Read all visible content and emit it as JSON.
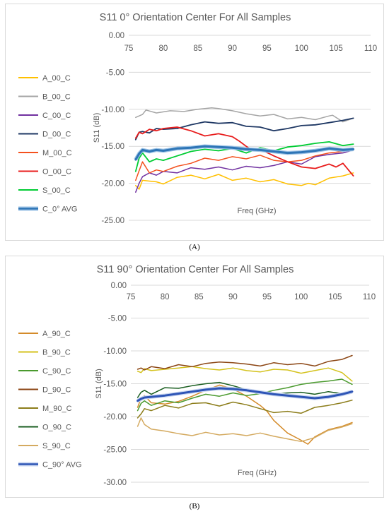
{
  "chart_data": [
    {
      "type": "line",
      "title": "S11 0° Orientation Center For All Samples",
      "xlabel": "Freq (GHz)",
      "ylabel": "S11 (dB)",
      "xlim": [
        75,
        110
      ],
      "ylim": [
        -25,
        0
      ],
      "x_ticks": [
        "75",
        "80",
        "85",
        "90",
        "95",
        "100",
        "105",
        "110"
      ],
      "y_ticks": [
        "0.00",
        "-5.00",
        "-10.00",
        "-15.00",
        "-20.00",
        "-25.00"
      ],
      "legend_position": "left",
      "series": [
        {
          "name": "A_00_C",
          "color": "#ffc000",
          "width": 1.5,
          "x": [
            76,
            76.5,
            77,
            78,
            79,
            80,
            82,
            84,
            86,
            88,
            90,
            92,
            94,
            96,
            98,
            100,
            101,
            102,
            104,
            106,
            107.5
          ],
          "y": [
            -20.3,
            -20.8,
            -19.6,
            -19.7,
            -19.8,
            -20.1,
            -19.2,
            -18.9,
            -19.4,
            -18.8,
            -19.6,
            -19.3,
            -19.8,
            -19.5,
            -20.1,
            -20.3,
            -20.0,
            -20.2,
            -19.3,
            -19.0,
            -18.6
          ]
        },
        {
          "name": "B_00_C",
          "color": "#a5a5a5",
          "width": 1.5,
          "x": [
            76,
            77,
            77.5,
            79,
            81,
            83,
            85,
            87,
            88,
            90,
            92,
            94,
            96,
            98,
            100,
            102,
            104,
            104.5,
            106,
            107.5
          ],
          "y": [
            -11.1,
            -10.7,
            -10.1,
            -10.5,
            -10.2,
            -10.3,
            -10.0,
            -9.8,
            -9.9,
            -10.2,
            -10.6,
            -10.9,
            -10.7,
            -11.3,
            -11.1,
            -11.4,
            -10.9,
            -10.8,
            -11.7,
            -11.2
          ]
        },
        {
          "name": "C_00_C",
          "color": "#7030a0",
          "width": 1.5,
          "x": [
            76,
            76.5,
            77,
            78,
            79,
            80,
            82,
            84,
            86,
            88,
            90,
            92,
            94,
            96,
            98,
            100,
            102,
            104,
            106,
            107.5
          ],
          "y": [
            -21.2,
            -20.0,
            -19.1,
            -18.6,
            -18.9,
            -18.4,
            -18.6,
            -17.9,
            -18.1,
            -17.8,
            -18.2,
            -17.7,
            -17.9,
            -17.6,
            -17.1,
            -17.4,
            -16.4,
            -16.1,
            -15.9,
            -15.5
          ]
        },
        {
          "name": "D_00_C",
          "color": "#1f3864",
          "width": 1.8,
          "x": [
            76,
            76.5,
            77,
            78,
            79,
            80,
            82,
            84,
            86,
            88,
            90,
            92,
            94,
            96,
            98,
            100,
            102,
            104,
            106,
            107.5
          ],
          "y": [
            -14.1,
            -13.1,
            -13.0,
            -13.2,
            -12.6,
            -12.7,
            -12.6,
            -12.1,
            -11.7,
            -11.9,
            -11.8,
            -12.3,
            -12.4,
            -12.9,
            -12.6,
            -12.2,
            -12.1,
            -11.8,
            -11.5,
            -11.2
          ]
        },
        {
          "name": "M_00_C",
          "color": "#f4511e",
          "width": 1.5,
          "x": [
            76,
            76.5,
            77,
            78,
            79,
            80,
            82,
            84,
            86,
            88,
            90,
            92,
            94,
            96,
            98,
            100,
            102,
            104,
            106,
            107.5
          ],
          "y": [
            -19.6,
            -18.3,
            -17.1,
            -18.6,
            -18.2,
            -18.4,
            -17.7,
            -17.3,
            -16.6,
            -16.9,
            -16.4,
            -16.7,
            -16.2,
            -16.9,
            -17.1,
            -16.9,
            -16.3,
            -15.9,
            -15.7,
            -15.3
          ]
        },
        {
          "name": "O_00_C",
          "color": "#e81c1c",
          "width": 1.8,
          "x": [
            76,
            76.5,
            77,
            78,
            79,
            80,
            82,
            84,
            86,
            88,
            90,
            91,
            92,
            93,
            94,
            96,
            98,
            100,
            102,
            104,
            105,
            106,
            107.5
          ],
          "y": [
            -13.9,
            -13.1,
            -13.3,
            -12.7,
            -12.9,
            -12.6,
            -12.4,
            -12.9,
            -13.6,
            -13.3,
            -13.7,
            -14.3,
            -15.0,
            -15.6,
            -15.4,
            -16.3,
            -17.1,
            -17.8,
            -18.0,
            -17.4,
            -17.8,
            -17.3,
            -19.0
          ]
        },
        {
          "name": "S_00_C",
          "color": "#00cc33",
          "width": 1.8,
          "x": [
            76,
            76.5,
            77,
            78,
            79,
            80,
            82,
            84,
            86,
            88,
            90,
            92,
            94,
            96,
            98,
            100,
            102,
            104,
            106,
            107.5
          ],
          "y": [
            -18.4,
            -16.6,
            -15.9,
            -17.1,
            -16.7,
            -16.9,
            -16.3,
            -15.7,
            -15.4,
            -15.6,
            -15.3,
            -15.9,
            -15.2,
            -15.6,
            -15.1,
            -14.9,
            -14.6,
            -14.4,
            -14.9,
            -14.7
          ]
        },
        {
          "name": "C_0° AVG",
          "color": "#2e75b6",
          "width": 3.0,
          "halo": "#9dc3e6",
          "x": [
            76,
            76.5,
            77,
            78,
            79,
            80,
            82,
            84,
            86,
            88,
            90,
            92,
            94,
            96,
            98,
            100,
            102,
            104,
            106,
            107.5
          ],
          "y": [
            -16.8,
            -16.0,
            -15.5,
            -15.7,
            -15.5,
            -15.6,
            -15.3,
            -15.2,
            -15.0,
            -15.1,
            -15.2,
            -15.4,
            -15.5,
            -15.7,
            -15.9,
            -15.8,
            -15.6,
            -15.3,
            -15.5,
            -15.4
          ]
        }
      ]
    },
    {
      "type": "line",
      "title": "S11 90° Orientation Center For All Samples",
      "xlabel": "Freq (GHz)",
      "ylabel": "S11 (dB)",
      "xlim": [
        75,
        110
      ],
      "ylim": [
        -30,
        0
      ],
      "x_ticks": [
        "75",
        "80",
        "85",
        "90",
        "95",
        "100",
        "105",
        "110"
      ],
      "y_ticks": [
        "0.00",
        "-5.00",
        "-10.00",
        "-15.00",
        "-20.00",
        "-25.00",
        "-30.00"
      ],
      "legend_position": "left",
      "series": [
        {
          "name": "A_90_C",
          "color": "#d48b2a",
          "width": 1.5,
          "x": [
            76,
            76.5,
            77,
            78,
            80,
            82,
            84,
            86,
            88,
            90,
            92,
            94,
            95,
            96,
            98,
            100,
            101,
            102,
            104,
            106,
            107.5
          ],
          "y": [
            -18.6,
            -17.2,
            -16.8,
            -17.9,
            -18.1,
            -17.7,
            -16.9,
            -16.0,
            -15.2,
            -15.8,
            -16.9,
            -18.3,
            -19.2,
            -20.6,
            -22.5,
            -23.6,
            -24.2,
            -23.1,
            -22.0,
            -21.5,
            -20.9
          ]
        },
        {
          "name": "B_90_C",
          "color": "#d4c21c",
          "width": 1.5,
          "x": [
            76,
            76.5,
            77,
            78,
            80,
            82,
            84,
            86,
            88,
            90,
            92,
            94,
            96,
            98,
            100,
            102,
            104,
            106,
            107.5
          ],
          "y": [
            -13.1,
            -13.3,
            -12.7,
            -13.0,
            -12.8,
            -12.6,
            -12.4,
            -12.7,
            -12.9,
            -12.6,
            -13.0,
            -13.2,
            -12.8,
            -12.9,
            -13.4,
            -13.0,
            -12.6,
            -13.3,
            -14.6
          ]
        },
        {
          "name": "C_90_C",
          "color": "#4a9a2e",
          "width": 1.5,
          "x": [
            76,
            76.5,
            77,
            78,
            80,
            82,
            84,
            86,
            88,
            90,
            92,
            94,
            96,
            98,
            100,
            102,
            104,
            106,
            107.5
          ],
          "y": [
            -19.1,
            -18.0,
            -17.6,
            -18.3,
            -17.6,
            -17.9,
            -17.2,
            -16.6,
            -16.9,
            -16.4,
            -16.8,
            -16.5,
            -16.0,
            -15.6,
            -15.1,
            -14.8,
            -14.6,
            -14.3,
            -15.1
          ]
        },
        {
          "name": "D_90_C",
          "color": "#8b4513",
          "width": 1.5,
          "x": [
            76,
            76.5,
            77,
            78,
            80,
            82,
            84,
            86,
            88,
            90,
            92,
            94,
            96,
            98,
            100,
            102,
            104,
            106,
            107.5
          ],
          "y": [
            -12.8,
            -12.6,
            -12.9,
            -12.4,
            -12.7,
            -12.1,
            -12.4,
            -11.9,
            -11.7,
            -11.8,
            -12.0,
            -12.3,
            -11.8,
            -12.1,
            -11.9,
            -12.3,
            -11.6,
            -11.3,
            -10.7
          ]
        },
        {
          "name": "M_90_C",
          "color": "#8c7d1a",
          "width": 1.5,
          "x": [
            76,
            76.5,
            77,
            78,
            80,
            82,
            84,
            86,
            88,
            90,
            92,
            94,
            96,
            98,
            100,
            102,
            104,
            106,
            107.5
          ],
          "y": [
            -20.2,
            -19.6,
            -18.8,
            -19.1,
            -18.3,
            -18.7,
            -18.0,
            -17.9,
            -18.4,
            -17.8,
            -18.2,
            -18.8,
            -19.4,
            -19.2,
            -19.5,
            -18.6,
            -18.3,
            -17.9,
            -17.5
          ]
        },
        {
          "name": "O_90_C",
          "color": "#1a5e20",
          "width": 1.5,
          "x": [
            76,
            76.5,
            77,
            78,
            80,
            82,
            84,
            86,
            88,
            90,
            92,
            94,
            96,
            98,
            100,
            102,
            104,
            106,
            107.5
          ],
          "y": [
            -17.1,
            -16.3,
            -16.0,
            -16.6,
            -15.6,
            -15.7,
            -15.3,
            -15.0,
            -14.8,
            -15.3,
            -15.9,
            -16.2,
            -16.6,
            -16.4,
            -16.3,
            -16.6,
            -16.2,
            -16.5,
            -16.2
          ]
        },
        {
          "name": "S_90_C",
          "color": "#d4aa60",
          "width": 1.5,
          "x": [
            76,
            76.5,
            77,
            78,
            80,
            82,
            84,
            86,
            88,
            90,
            92,
            94,
            96,
            98,
            100,
            102,
            104,
            106,
            107.5
          ],
          "y": [
            -21.5,
            -20.2,
            -21.2,
            -21.9,
            -22.2,
            -22.6,
            -22.9,
            -22.4,
            -22.8,
            -22.6,
            -22.9,
            -22.5,
            -23.0,
            -23.4,
            -23.8,
            -23.2,
            -22.1,
            -21.6,
            -21.1
          ]
        },
        {
          "name": "C_90° AVG",
          "color": "#2e55b6",
          "width": 3.0,
          "halo": "#c9d6f0",
          "x": [
            76,
            76.5,
            77,
            78,
            80,
            82,
            84,
            86,
            88,
            90,
            92,
            94,
            96,
            98,
            100,
            102,
            104,
            106,
            107.5
          ],
          "y": [
            -17.6,
            -17.3,
            -17.1,
            -17.0,
            -16.8,
            -16.5,
            -16.2,
            -15.9,
            -15.7,
            -15.8,
            -16.0,
            -16.3,
            -16.6,
            -16.8,
            -17.0,
            -17.2,
            -17.0,
            -16.6,
            -16.2
          ]
        }
      ]
    }
  ],
  "captions": [
    "(A)",
    "(B)"
  ]
}
